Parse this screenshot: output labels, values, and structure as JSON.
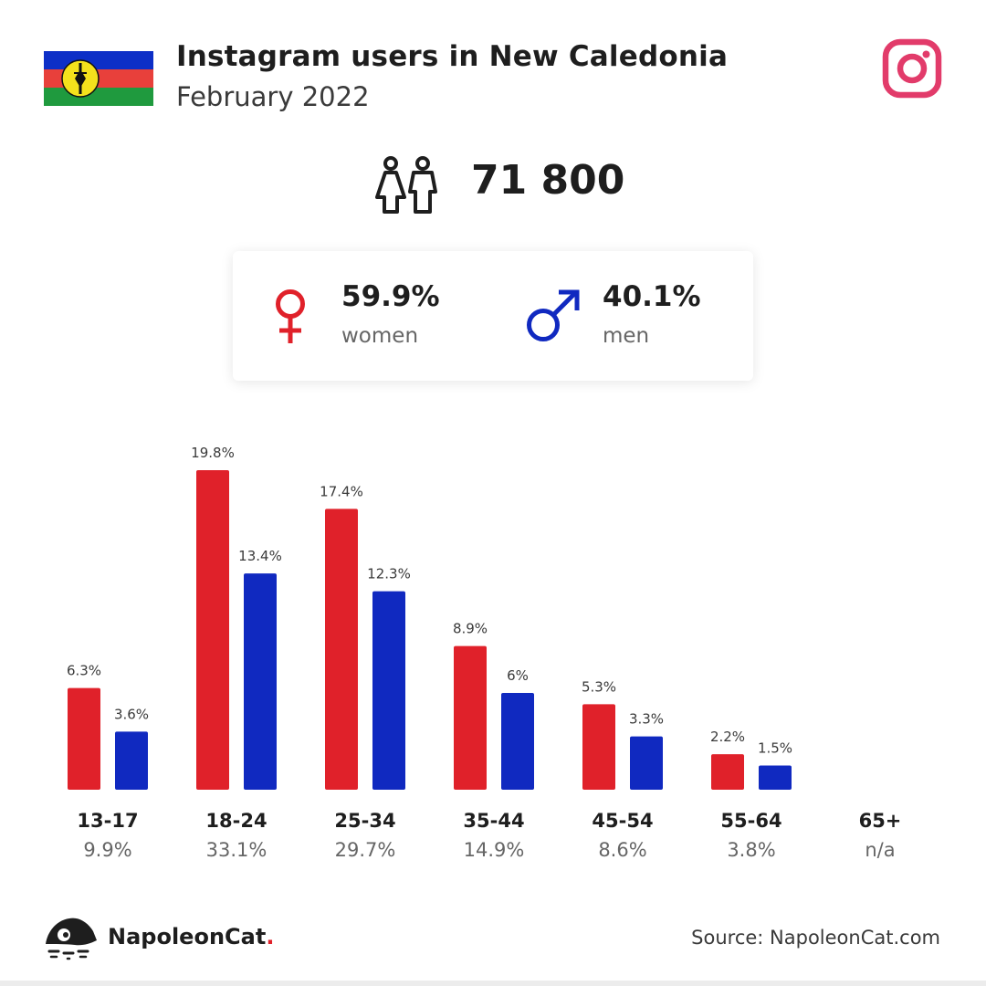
{
  "header": {
    "title": "Instagram users in New Caledonia",
    "subtitle": "February 2022"
  },
  "summary": {
    "total": "71 800",
    "women_pct": "59.9%",
    "women_label": "women",
    "men_pct": "40.1%",
    "men_label": "men"
  },
  "colors": {
    "women": "#e0212a",
    "men": "#1029c0",
    "instagram": "#e23b6a",
    "flag_blue": "#0d2fc7",
    "flag_red": "#e8403b",
    "flag_green": "#1f9a3e",
    "flag_disc": "#f4e11c"
  },
  "icons": {
    "instagram": "instagram-icon",
    "users": "users-icon",
    "female": "female-symbol-icon",
    "male": "male-symbol-icon",
    "logo": "napoleoncat-logo-icon"
  },
  "chart_data": {
    "type": "bar",
    "categories": [
      "13-17",
      "18-24",
      "25-34",
      "35-44",
      "45-54",
      "55-64",
      "65+"
    ],
    "category_totals": [
      "9.9%",
      "33.1%",
      "29.7%",
      "14.9%",
      "8.6%",
      "3.8%",
      "n/a"
    ],
    "series": [
      {
        "name": "women",
        "values": [
          6.3,
          19.8,
          17.4,
          8.9,
          5.3,
          2.2,
          null
        ],
        "labels": [
          "6.3%",
          "19.8%",
          "17.4%",
          "8.9%",
          "5.3%",
          "2.2%",
          ""
        ]
      },
      {
        "name": "men",
        "values": [
          3.6,
          13.4,
          12.3,
          6,
          3.3,
          1.5,
          null
        ],
        "labels": [
          "3.6%",
          "13.4%",
          "12.3%",
          "6%",
          "3.3%",
          "1.5%",
          ""
        ]
      }
    ],
    "ylim": [
      0,
      19.8
    ],
    "grid": false
  },
  "footer": {
    "brand": "NapoleonCat",
    "brand_dot": ".",
    "source": "Source: NapoleonCat.com"
  }
}
